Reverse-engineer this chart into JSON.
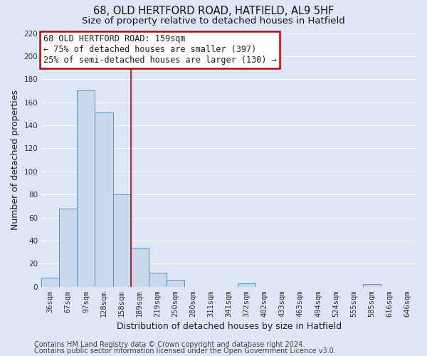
{
  "title1": "68, OLD HERTFORD ROAD, HATFIELD, AL9 5HF",
  "title2": "Size of property relative to detached houses in Hatfield",
  "xlabel": "Distribution of detached houses by size in Hatfield",
  "ylabel": "Number of detached properties",
  "bar_labels": [
    "36sqm",
    "67sqm",
    "97sqm",
    "128sqm",
    "158sqm",
    "189sqm",
    "219sqm",
    "250sqm",
    "280sqm",
    "311sqm",
    "341sqm",
    "372sqm",
    "402sqm",
    "433sqm",
    "463sqm",
    "494sqm",
    "524sqm",
    "555sqm",
    "585sqm",
    "616sqm",
    "646sqm"
  ],
  "bar_values": [
    8,
    68,
    170,
    151,
    80,
    34,
    12,
    6,
    0,
    0,
    0,
    3,
    0,
    0,
    0,
    0,
    0,
    0,
    2,
    0,
    0
  ],
  "bar_color": "#c9d9ed",
  "bar_edge_color": "#5b8fc4",
  "ylim": [
    0,
    220
  ],
  "yticks": [
    0,
    20,
    40,
    60,
    80,
    100,
    120,
    140,
    160,
    180,
    200,
    220
  ],
  "vline_x_index": 4.5,
  "annotation_title": "68 OLD HERTFORD ROAD: 159sqm",
  "annotation_line1": "← 75% of detached houses are smaller (397)",
  "annotation_line2": "25% of semi-detached houses are larger (130) →",
  "annotation_box_color": "#ffffff",
  "annotation_box_edge": "#cc0000",
  "vline_color": "#cc0000",
  "footer1": "Contains HM Land Registry data © Crown copyright and database right 2024.",
  "footer2": "Contains public sector information licensed under the Open Government Licence v3.0.",
  "fig_background_color": "#dce6f5",
  "plot_background_color": "#dce6f5",
  "grid_color": "#ffffff",
  "title_fontsize": 10.5,
  "subtitle_fontsize": 9.5,
  "axis_label_fontsize": 9,
  "tick_fontsize": 7.5,
  "annotation_fontsize": 8.5,
  "footer_fontsize": 7
}
